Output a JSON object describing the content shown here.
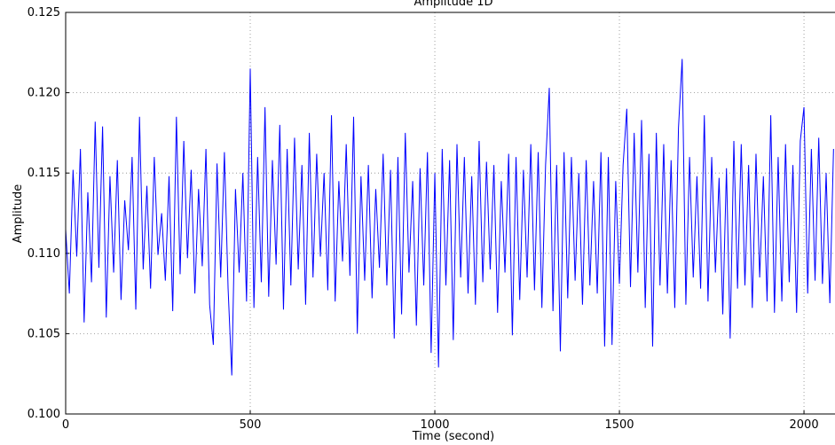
{
  "chart_data": {
    "type": "line",
    "title": "Amplitude 1D",
    "xlabel": "Time (second)",
    "ylabel": "Amplitude",
    "xlim": [
      0,
      2084
    ],
    "ylim": [
      0.1,
      0.125
    ],
    "xticks": [
      0,
      500,
      1000,
      1500,
      2000
    ],
    "yticks": [
      {
        "value": 0.1,
        "label": "0.100"
      },
      0.105,
      {
        "value": 0.11,
        "label": "0.110"
      },
      0.115,
      {
        "value": 0.12,
        "label": "0.120"
      },
      0.125
    ],
    "grid": true,
    "x": [
      0,
      10,
      20,
      30,
      40,
      50,
      60,
      70,
      80,
      90,
      100,
      110,
      120,
      130,
      140,
      150,
      160,
      170,
      180,
      190,
      200,
      210,
      220,
      230,
      240,
      250,
      260,
      270,
      280,
      290,
      300,
      310,
      320,
      330,
      340,
      350,
      360,
      370,
      380,
      390,
      400,
      410,
      420,
      430,
      440,
      450,
      460,
      470,
      480,
      490,
      500,
      510,
      520,
      530,
      540,
      550,
      560,
      570,
      580,
      590,
      600,
      610,
      620,
      630,
      640,
      650,
      660,
      670,
      680,
      690,
      700,
      710,
      720,
      730,
      740,
      750,
      760,
      770,
      780,
      790,
      800,
      810,
      820,
      830,
      840,
      850,
      860,
      870,
      880,
      890,
      900,
      910,
      920,
      930,
      940,
      950,
      960,
      970,
      980,
      990,
      1000,
      1010,
      1020,
      1030,
      1040,
      1050,
      1060,
      1070,
      1080,
      1090,
      1100,
      1110,
      1120,
      1130,
      1140,
      1150,
      1160,
      1170,
      1180,
      1190,
      1200,
      1210,
      1220,
      1230,
      1240,
      1250,
      1260,
      1270,
      1280,
      1290,
      1300,
      1310,
      1320,
      1330,
      1340,
      1350,
      1360,
      1370,
      1380,
      1390,
      1400,
      1410,
      1420,
      1430,
      1440,
      1450,
      1460,
      1470,
      1480,
      1490,
      1500,
      1510,
      1520,
      1530,
      1540,
      1550,
      1560,
      1570,
      1580,
      1590,
      1600,
      1610,
      1620,
      1630,
      1640,
      1650,
      1660,
      1670,
      1680,
      1690,
      1700,
      1710,
      1720,
      1730,
      1740,
      1750,
      1760,
      1770,
      1780,
      1790,
      1800,
      1810,
      1820,
      1830,
      1840,
      1850,
      1860,
      1870,
      1880,
      1890,
      1900,
      1910,
      1920,
      1930,
      1940,
      1950,
      1960,
      1970,
      1980,
      1990,
      2000,
      2010,
      2020,
      2030,
      2040,
      2050,
      2060,
      2070,
      2080
    ],
    "series": [
      {
        "color": "#0000ff",
        "values": [
          0.1115,
          0.1075,
          0.1152,
          0.1098,
          0.1165,
          0.1057,
          0.1138,
          0.1082,
          0.1182,
          0.1091,
          0.1179,
          0.106,
          0.1148,
          0.1088,
          0.1158,
          0.1071,
          0.1133,
          0.1102,
          0.116,
          0.1065,
          0.1185,
          0.109,
          0.1142,
          0.1078,
          0.116,
          0.1099,
          0.1125,
          0.1083,
          0.1148,
          0.1064,
          0.1185,
          0.1087,
          0.117,
          0.1097,
          0.1152,
          0.1075,
          0.114,
          0.1092,
          0.1165,
          0.1068,
          0.1043,
          0.1156,
          0.1085,
          0.1163,
          0.1078,
          0.1024,
          0.114,
          0.1088,
          0.115,
          0.107,
          0.1215,
          0.1066,
          0.116,
          0.1082,
          0.1191,
          0.1073,
          0.1158,
          0.1093,
          0.118,
          0.1065,
          0.1165,
          0.108,
          0.1172,
          0.109,
          0.1155,
          0.1068,
          0.1175,
          0.1085,
          0.1162,
          0.1098,
          0.115,
          0.1077,
          0.1186,
          0.107,
          0.1145,
          0.1095,
          0.1168,
          0.1086,
          0.1185,
          0.105,
          0.1148,
          0.1083,
          0.1155,
          0.1072,
          0.114,
          0.1091,
          0.1162,
          0.108,
          0.1152,
          0.1047,
          0.116,
          0.1062,
          0.1175,
          0.1088,
          0.1145,
          0.1055,
          0.1153,
          0.108,
          0.1163,
          0.1038,
          0.115,
          0.1029,
          0.1165,
          0.108,
          0.1158,
          0.1046,
          0.1168,
          0.1085,
          0.116,
          0.1075,
          0.1148,
          0.1068,
          0.117,
          0.1082,
          0.1157,
          0.109,
          0.1155,
          0.1063,
          0.1145,
          0.1088,
          0.1162,
          0.1049,
          0.116,
          0.1071,
          0.1152,
          0.1085,
          0.1168,
          0.1077,
          0.1163,
          0.1066,
          0.1155,
          0.1203,
          0.1064,
          0.1155,
          0.1039,
          0.1163,
          0.1072,
          0.116,
          0.1083,
          0.115,
          0.1068,
          0.1158,
          0.108,
          0.1145,
          0.1075,
          0.1163,
          0.1042,
          0.116,
          0.1043,
          0.1145,
          0.1081,
          0.1155,
          0.119,
          0.1079,
          0.1175,
          0.1088,
          0.1183,
          0.1066,
          0.1162,
          0.1042,
          0.1175,
          0.108,
          0.1168,
          0.1075,
          0.1158,
          0.1066,
          0.1178,
          0.1221,
          0.1068,
          0.116,
          0.1085,
          0.1148,
          0.1078,
          0.1186,
          0.107,
          0.116,
          0.1088,
          0.1147,
          0.1062,
          0.1153,
          0.1047,
          0.117,
          0.1078,
          0.1168,
          0.108,
          0.1155,
          0.1066,
          0.1162,
          0.1085,
          0.1148,
          0.107,
          0.1186,
          0.1063,
          0.116,
          0.107,
          0.1168,
          0.1082,
          0.1155,
          0.1063,
          0.117,
          0.1191,
          0.1075,
          0.1165,
          0.1083,
          0.1172,
          0.1081,
          0.115,
          0.1069,
          0.1165
        ]
      }
    ]
  }
}
